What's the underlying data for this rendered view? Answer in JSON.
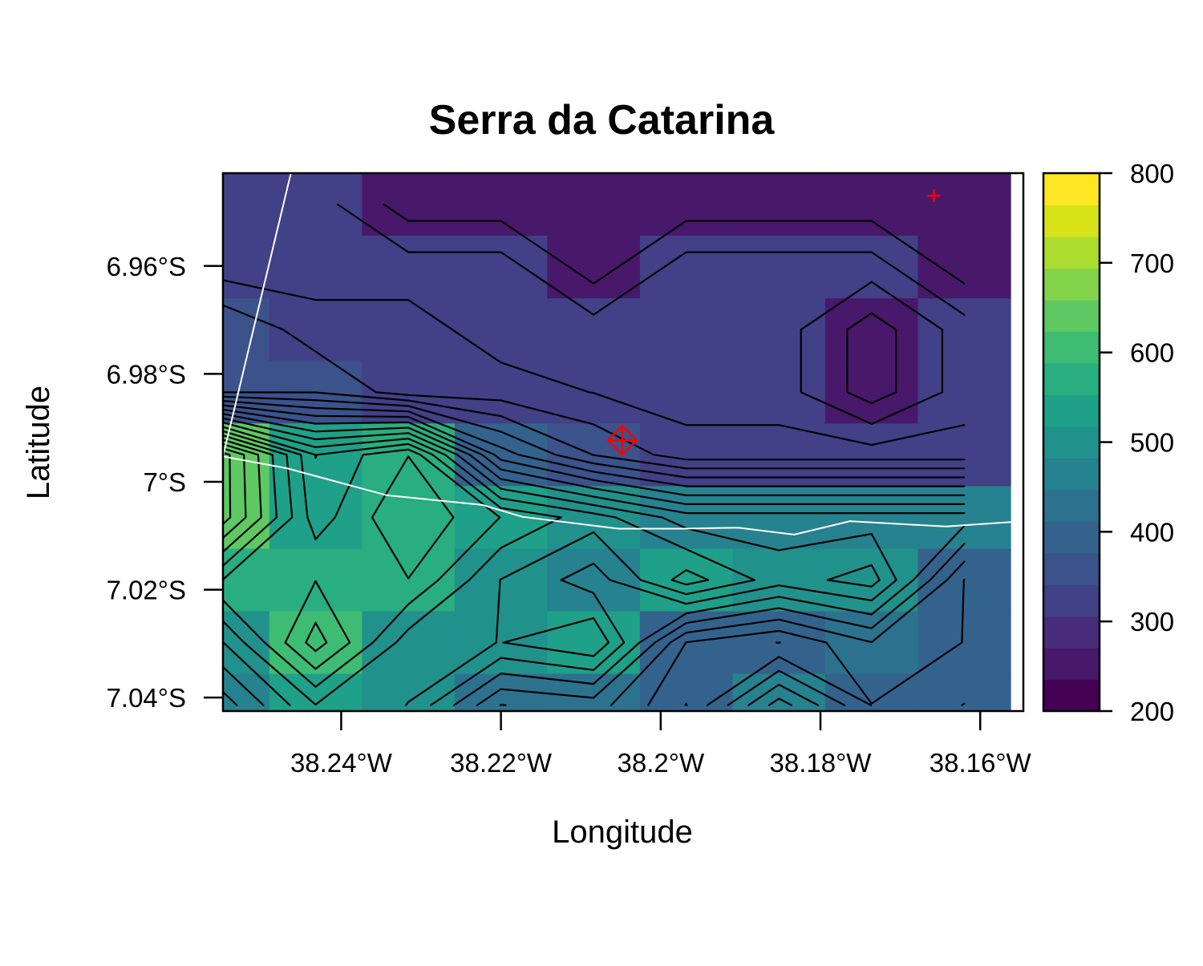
{
  "chart_data": {
    "type": "heatmap",
    "title": "Serra da Catarina",
    "xlabel": "Longitude",
    "ylabel": "Latitude",
    "xlim": [
      -38.2548,
      -38.1546
    ],
    "ylim": [
      -7.0425,
      -6.9428
    ],
    "x_ticks": [
      {
        "value": -38.24,
        "label": "38.24°W"
      },
      {
        "value": -38.22,
        "label": "38.22°W"
      },
      {
        "value": -38.2,
        "label": "38.2°W"
      },
      {
        "value": -38.18,
        "label": "38.18°W"
      },
      {
        "value": -38.16,
        "label": "38.16°W"
      }
    ],
    "y_ticks": [
      {
        "value": -6.96,
        "label": "6.96°S"
      },
      {
        "value": -6.98,
        "label": "6.98°S"
      },
      {
        "value": -7.0,
        "label": "7°S"
      },
      {
        "value": -7.02,
        "label": "7.02°S"
      },
      {
        "value": -7.04,
        "label": "7.04°S"
      }
    ],
    "grid_x_centers": [
      -38.2548,
      -38.2432,
      -38.2316,
      -38.22,
      -38.2084,
      -38.1968,
      -38.1852,
      -38.1736,
      -38.162
    ],
    "grid_y_centers": [
      -6.9486,
      -6.9602,
      -6.9718,
      -6.9834,
      -6.995,
      -7.0066,
      -7.0182,
      -7.0298,
      -7.0414
    ],
    "elevation": [
      [
        310,
        310,
        270,
        270,
        270,
        270,
        270,
        270,
        270
      ],
      [
        310,
        310,
        310,
        310,
        270,
        310,
        310,
        310,
        270
      ],
      [
        360,
        330,
        330,
        310,
        310,
        310,
        310,
        270,
        310
      ],
      [
        360,
        360,
        330,
        330,
        320,
        310,
        310,
        270,
        310
      ],
      [
        650,
        520,
        560,
        410,
        360,
        330,
        330,
        330,
        330
      ],
      [
        650,
        530,
        580,
        540,
        510,
        470,
        470,
        470,
        470
      ],
      [
        560,
        560,
        560,
        500,
        470,
        530,
        490,
        510,
        400
      ],
      [
        500,
        590,
        510,
        500,
        520,
        400,
        380,
        420,
        400
      ],
      [
        450,
        520,
        500,
        420,
        430,
        380,
        470,
        400,
        380
      ]
    ],
    "contour_interval": 20,
    "colorbar": {
      "min": 200,
      "max": 800,
      "ticks": [
        200,
        300,
        400,
        500,
        600,
        700,
        800
      ],
      "palette": [
        "#440154",
        "#48186A",
        "#472D7B",
        "#424086",
        "#3B528B",
        "#33638D",
        "#2C728E",
        "#26828E",
        "#21918C",
        "#1FA088",
        "#28AE80",
        "#3FBC73",
        "#5EC962",
        "#84D44B",
        "#ADDC30",
        "#D8E219",
        "#FDE725"
      ]
    },
    "boundary_lines": [
      {
        "color": "#ffffff",
        "points": [
          [
            -38.2548,
            -6.9953
          ],
          [
            -38.2468,
            -6.9975
          ],
          [
            -38.2343,
            -7.0025
          ],
          [
            -38.2223,
            -7.0043
          ],
          [
            -38.2173,
            -7.0065
          ],
          [
            -38.2053,
            -7.0087
          ],
          [
            -38.1973,
            -7.0087
          ],
          [
            -38.1903,
            -7.0085
          ],
          [
            -38.1833,
            -7.0098
          ],
          [
            -38.1763,
            -7.0073
          ],
          [
            -38.1643,
            -7.0083
          ],
          [
            -38.1546,
            -7.0073
          ]
        ]
      },
      {
        "color": "#ffffff",
        "points": [
          [
            -38.2548,
            -6.9953
          ],
          [
            -38.2463,
            -6.9428
          ]
        ]
      }
    ],
    "markers": [
      {
        "shape": "diamond-cross",
        "color": "#ff0000",
        "lon": -38.2048,
        "lat": -6.9923
      },
      {
        "shape": "plus",
        "color": "#ff0000",
        "lon": -38.1658,
        "lat": -6.947
      }
    ]
  }
}
